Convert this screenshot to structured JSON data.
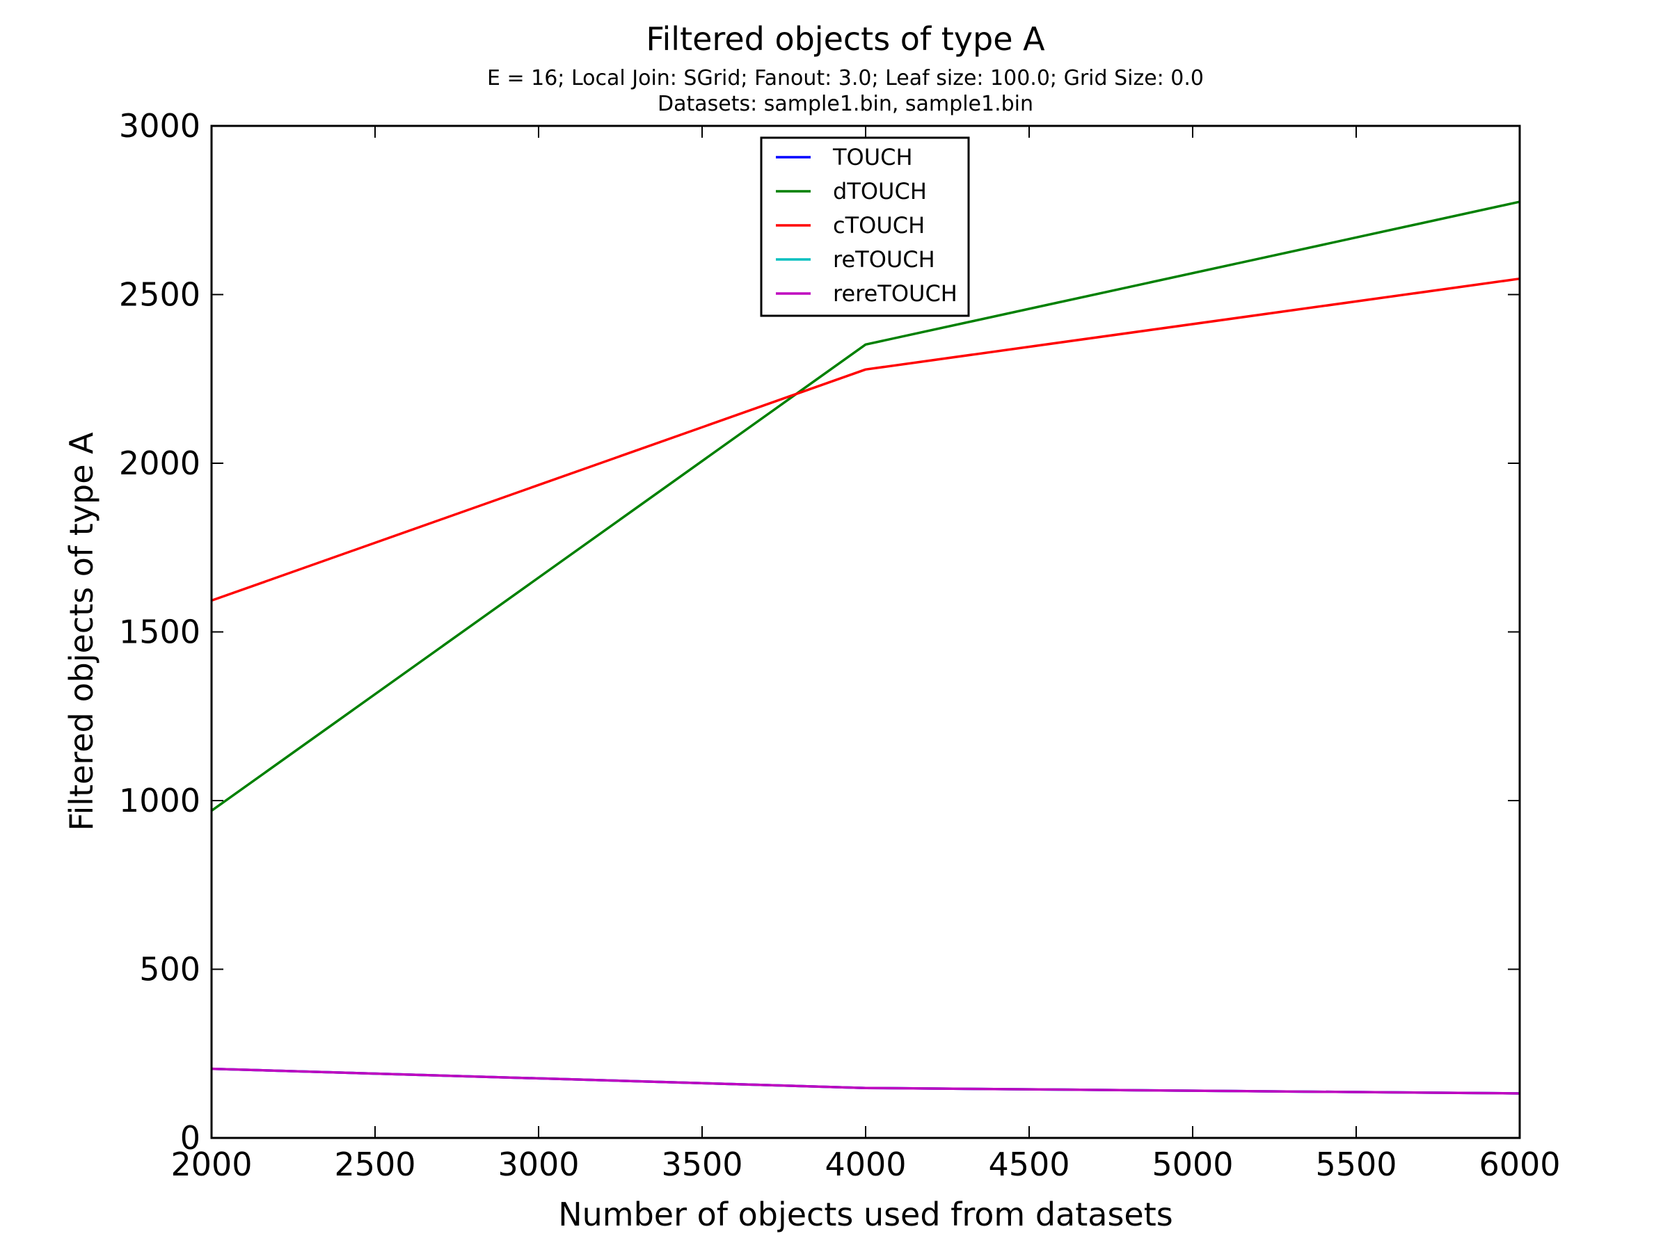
{
  "chart_data": {
    "type": "line",
    "title": "Filtered objects of type A",
    "subtitle_lines": [
      "E = 16; Local Join: SGrid; Fanout: 3.0; Leaf size: 100.0; Grid Size: 0.0",
      "Datasets: sample1.bin, sample1.bin"
    ],
    "xlabel": "Number of objects used from datasets",
    "ylabel": "Filtered objects of type A",
    "xlim": [
      2000,
      6000
    ],
    "ylim": [
      0,
      3000
    ],
    "xticks": [
      2000,
      2500,
      3000,
      3500,
      4000,
      4500,
      5000,
      5500,
      6000
    ],
    "yticks": [
      0,
      500,
      1000,
      1500,
      2000,
      2500,
      3000
    ],
    "x": [
      2000,
      4000,
      6000
    ],
    "grid": false,
    "legend_position": "top-center",
    "series": [
      {
        "name": "TOUCH",
        "color": "#0000ff",
        "values": [
          205,
          148,
          132
        ]
      },
      {
        "name": "dTOUCH",
        "color": "#008000",
        "values": [
          970,
          2352,
          2775
        ]
      },
      {
        "name": "cTOUCH",
        "color": "#ff0000",
        "values": [
          1593,
          2278,
          2547
        ]
      },
      {
        "name": "reTOUCH",
        "color": "#00bfbf",
        "values": [
          205,
          148,
          132
        ]
      },
      {
        "name": "rereTOUCH",
        "color": "#bf00bf",
        "values": [
          205,
          148,
          132
        ]
      }
    ]
  }
}
